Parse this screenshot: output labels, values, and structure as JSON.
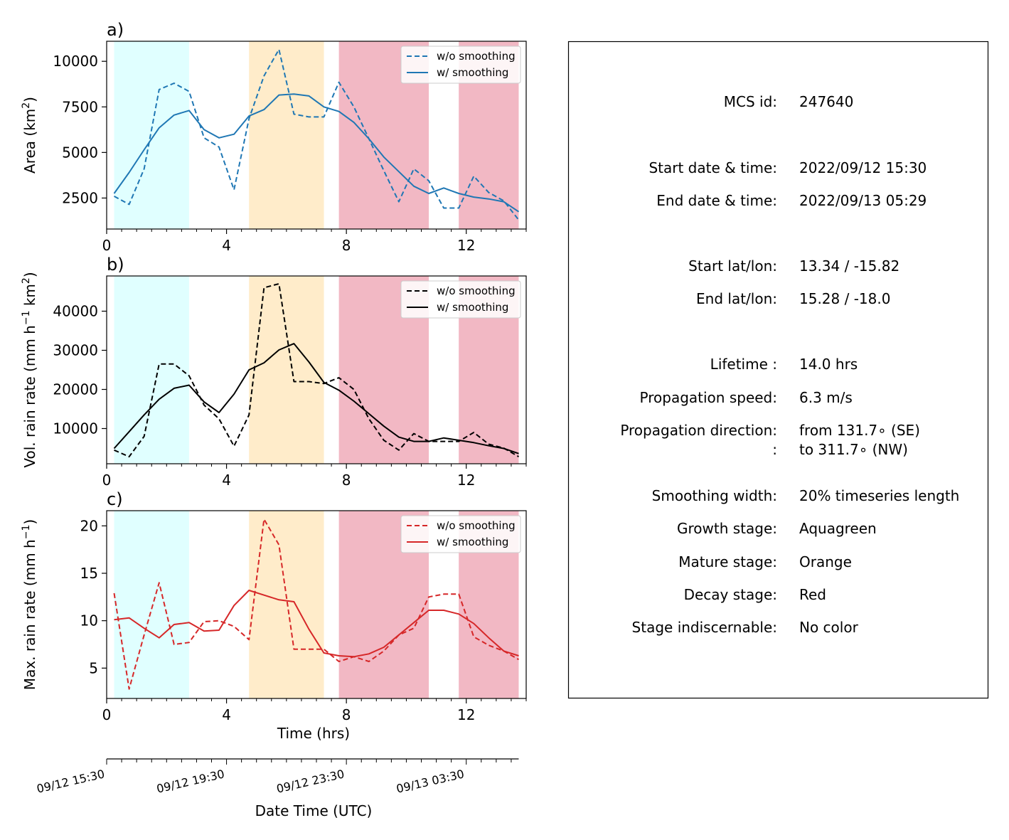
{
  "chart_data": [
    {
      "type": "line",
      "panel_label": "a)",
      "xlabel": "",
      "ylabel": "Area  (km$^2$)",
      "ylabel_display": {
        "text": "Area  (km",
        "sup": "2",
        "tail": ")"
      },
      "xlim": [
        0,
        14
      ],
      "ylim": [
        800,
        11100
      ],
      "xticks": [
        "0",
        "4",
        "8",
        "12"
      ],
      "yticks": [
        "2500",
        "5000",
        "7500",
        "10000"
      ],
      "legend_position": "top-right",
      "color": "#1f77b4",
      "x": [
        0.25,
        0.75,
        1.25,
        1.75,
        2.25,
        2.75,
        3.25,
        3.75,
        4.25,
        4.75,
        5.25,
        5.75,
        6.25,
        6.75,
        7.25,
        7.75,
        8.25,
        8.75,
        9.25,
        9.75,
        10.25,
        10.75,
        11.25,
        11.75,
        12.25,
        12.75,
        13.25,
        13.75
      ],
      "series": [
        {
          "name": "w/o smoothing",
          "style": "dashed",
          "values": [
            2600,
            2150,
            4100,
            8450,
            8800,
            8350,
            5800,
            5300,
            2950,
            6850,
            9200,
            10650,
            7100,
            6950,
            6950,
            8850,
            7500,
            5750,
            4000,
            2300,
            4100,
            3450,
            1950,
            1950,
            3700,
            2800,
            2350,
            1300
          ]
        },
        {
          "name": "w/ smoothing",
          "style": "solid",
          "values": [
            2750,
            3900,
            5150,
            6350,
            7050,
            7300,
            6250,
            5800,
            6000,
            7000,
            7350,
            8150,
            8200,
            8100,
            7500,
            7250,
            6650,
            5750,
            4750,
            3950,
            3150,
            2750,
            3050,
            2750,
            2550,
            2450,
            2300,
            1750
          ]
        }
      ],
      "shaded_stages": [
        {
          "stage": "Growth",
          "from": 0.25,
          "to": 2.75,
          "color": "#e0ffff"
        },
        {
          "stage": "Mature",
          "from": 4.75,
          "to": 7.25,
          "color": "#ffecca"
        },
        {
          "stage": "Decay",
          "from": 7.75,
          "to": 10.75,
          "color": "#f2b8c4"
        },
        {
          "stage": "Decay",
          "from": 11.75,
          "to": 13.75,
          "color": "#f2b8c4"
        }
      ]
    },
    {
      "type": "line",
      "panel_label": "b)",
      "xlabel": "",
      "ylabel": "Vol. rain rate (mm h$^{-1}$ km$^2$)",
      "ylabel_display": {
        "text": "Vol. rain rate (mm h",
        "sup": "−1",
        "mid": " km",
        "sup2": "2",
        "tail": ")"
      },
      "xlim": [
        0,
        14
      ],
      "ylim": [
        1000,
        49000
      ],
      "xticks": [
        "0",
        "4",
        "8",
        "12"
      ],
      "yticks": [
        "10000",
        "20000",
        "30000",
        "40000"
      ],
      "legend_position": "top-right",
      "color": "#000000",
      "x": [
        0.25,
        0.75,
        1.25,
        1.75,
        2.25,
        2.75,
        3.25,
        3.75,
        4.25,
        4.75,
        5.25,
        5.75,
        6.25,
        6.75,
        7.25,
        7.75,
        8.25,
        8.75,
        9.25,
        9.75,
        10.25,
        10.75,
        11.25,
        11.75,
        12.25,
        12.75,
        13.25,
        13.75
      ],
      "series": [
        {
          "name": "w/o smoothing",
          "style": "dashed",
          "values": [
            4500,
            2800,
            8000,
            26500,
            26500,
            23500,
            16000,
            12500,
            5500,
            13500,
            46000,
            47000,
            22000,
            22000,
            21500,
            23000,
            20000,
            12500,
            7000,
            4500,
            8700,
            6700,
            6700,
            6700,
            9000,
            6000,
            5000,
            2800
          ]
        },
        {
          "name": "w/ smoothing",
          "style": "solid",
          "values": [
            4900,
            9200,
            13500,
            17500,
            20300,
            21100,
            16800,
            14100,
            18800,
            25000,
            26800,
            30100,
            31700,
            27000,
            21800,
            19800,
            17000,
            13800,
            10600,
            7800,
            6700,
            6700,
            7600,
            7000,
            6400,
            5600,
            4900,
            3600
          ]
        }
      ],
      "shaded_stages": [
        {
          "stage": "Growth",
          "from": 0.25,
          "to": 2.75,
          "color": "#e0ffff"
        },
        {
          "stage": "Mature",
          "from": 4.75,
          "to": 7.25,
          "color": "#ffecca"
        },
        {
          "stage": "Decay",
          "from": 7.75,
          "to": 10.75,
          "color": "#f2b8c4"
        },
        {
          "stage": "Decay",
          "from": 11.75,
          "to": 13.75,
          "color": "#f2b8c4"
        }
      ]
    },
    {
      "type": "line",
      "panel_label": "c)",
      "xlabel": "Time (hrs)",
      "ylabel": "Max. rain rate  (mm h$^{-1}$)",
      "ylabel_display": {
        "text": "Max. rain rate  (mm h",
        "sup": "−1",
        "tail": ")"
      },
      "xlim": [
        0,
        14
      ],
      "ylim": [
        1.8,
        21.6
      ],
      "xticks": [
        "0",
        "4",
        "8",
        "12"
      ],
      "yticks": [
        "5",
        "10",
        "15",
        "20"
      ],
      "legend_position": "top-right",
      "color": "#d62728",
      "x": [
        0.25,
        0.75,
        1.25,
        1.75,
        2.25,
        2.75,
        3.25,
        3.75,
        4.25,
        4.75,
        5.25,
        5.75,
        6.25,
        6.75,
        7.25,
        7.75,
        8.25,
        8.75,
        9.25,
        9.75,
        10.25,
        10.75,
        11.25,
        11.75,
        12.25,
        12.75,
        13.25,
        13.75
      ],
      "series": [
        {
          "name": "w/o smoothing",
          "style": "dashed",
          "values": [
            12.9,
            2.8,
            8.5,
            14.0,
            7.5,
            7.7,
            9.9,
            10.0,
            9.4,
            8.0,
            20.7,
            18.0,
            7.0,
            7.0,
            7.0,
            5.7,
            6.2,
            5.7,
            6.8,
            8.5,
            9.2,
            12.5,
            12.8,
            12.8,
            8.3,
            7.4,
            6.8,
            5.9
          ]
        },
        {
          "name": "w/ smoothing",
          "style": "solid",
          "values": [
            10.1,
            10.3,
            9.2,
            8.2,
            9.6,
            9.8,
            8.9,
            9.0,
            11.6,
            13.2,
            12.7,
            12.2,
            12.0,
            9.1,
            6.6,
            6.3,
            6.2,
            6.5,
            7.2,
            8.5,
            9.8,
            11.1,
            11.1,
            10.7,
            9.7,
            8.2,
            6.8,
            6.3
          ]
        }
      ],
      "shaded_stages": [
        {
          "stage": "Growth",
          "from": 0.25,
          "to": 2.75,
          "color": "#e0ffff"
        },
        {
          "stage": "Mature",
          "from": 4.75,
          "to": 7.25,
          "color": "#ffecca"
        },
        {
          "stage": "Decay",
          "from": 7.75,
          "to": 10.75,
          "color": "#f2b8c4"
        },
        {
          "stage": "Decay",
          "from": 11.75,
          "to": 13.75,
          "color": "#f2b8c4"
        }
      ]
    }
  ],
  "date_axis": {
    "xlabel": "Date Time (UTC)",
    "labels": [
      {
        "hour": 0,
        "text": "09/12 15:30"
      },
      {
        "hour": 4,
        "text": "09/12 19:30"
      },
      {
        "hour": 8,
        "text": "09/12 23:30"
      },
      {
        "hour": 12,
        "text": "09/13 03:30"
      }
    ],
    "minor_tick_step_hours": 0.5,
    "tick_range_hours": [
      0,
      13.75
    ]
  },
  "info_panel": {
    "rows": [
      {
        "key": "MCS id:",
        "value": "247640"
      },
      {
        "key": "Start date & time:",
        "value": "2022/09/12 15:30"
      },
      {
        "key": "End date & time:",
        "value": "2022/09/13 05:29"
      },
      {
        "key": "Start lat/lon:",
        "value": "13.34 / -15.82"
      },
      {
        "key": "End lat/lon:",
        "value": "15.28 / -18.0"
      },
      {
        "key": "Lifetime :",
        "value": "14.0 hrs"
      },
      {
        "key": "Propagation speed:",
        "value": "6.3 m/s"
      },
      {
        "key": "Propagation direction:",
        "value": "from 131.7∘ (SE)"
      },
      {
        "key": ":",
        "value": "to   311.7∘ (NW)"
      },
      {
        "key": "Smoothing width:",
        "value": "20% timeseries length"
      },
      {
        "key": "Growth stage:",
        "value": "Aquagreen"
      },
      {
        "key": "Mature stage:",
        "value": "Orange"
      },
      {
        "key": "Decay stage:",
        "value": "Red"
      },
      {
        "key": "Stage indiscernable:",
        "value": "No color"
      }
    ]
  }
}
